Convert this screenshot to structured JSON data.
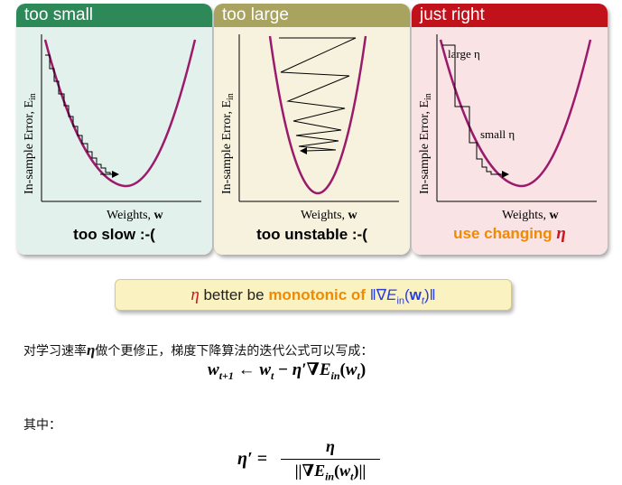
{
  "panels": [
    {
      "title": "too small",
      "caption": "too slow :-(",
      "y_label": "In-sample Error, E",
      "y_label_sub": "in",
      "x_label": "Weights, ",
      "x_label_bold": "w"
    },
    {
      "title": "too large",
      "caption": "too unstable :-(",
      "y_label": "In-sample Error, E",
      "y_label_sub": "in",
      "x_label": "Weights, ",
      "x_label_bold": "w"
    },
    {
      "title": "just right",
      "caption_text": "use changing ",
      "caption_eta": "η",
      "y_label": "In-sample Error, E",
      "y_label_sub": "in",
      "x_label": "Weights, ",
      "x_label_bold": "w",
      "annot_large": "large η",
      "annot_small": "small η"
    }
  ],
  "colors": {
    "too_small": "#2d8a58",
    "too_large": "#a8a35e",
    "just_right": "#c1121c",
    "curve": "#9c1a6b",
    "orange": "#f08a00",
    "blue": "#2a3dd6"
  },
  "highlight": {
    "eta": "η",
    "text1": " better be ",
    "text2": "monotonic of ",
    "norm_open": "‖∇",
    "E": "E",
    "E_sub": "in",
    "paren_open": "(",
    "w": "w",
    "w_sub": "t",
    "paren_close": ")",
    "norm_close": "‖"
  },
  "body": {
    "line1_pre": "对学习速率",
    "line1_eta": "η",
    "line1_post": "做个更修正，梯度下降算法的迭代公式可以写成：",
    "eq1": {
      "w": "w",
      "sub1": "t+1",
      "arrow": " ← ",
      "w2": "w",
      "sub2": "t",
      "minus": " − ",
      "eta_prime": "η′",
      "nabla": "∇",
      "E": "E",
      "E_sub": "in",
      "open": "(",
      "w3": "w",
      "sub3": "t",
      "close": ")"
    },
    "line2": "其中：",
    "eq2": {
      "lhs": "η′ = ",
      "num": "η",
      "den_open": "||∇",
      "E": "E",
      "E_sub": "in",
      "paren_open": "(",
      "w": "w",
      "w_sub": "t",
      "paren_close": ")||"
    }
  }
}
